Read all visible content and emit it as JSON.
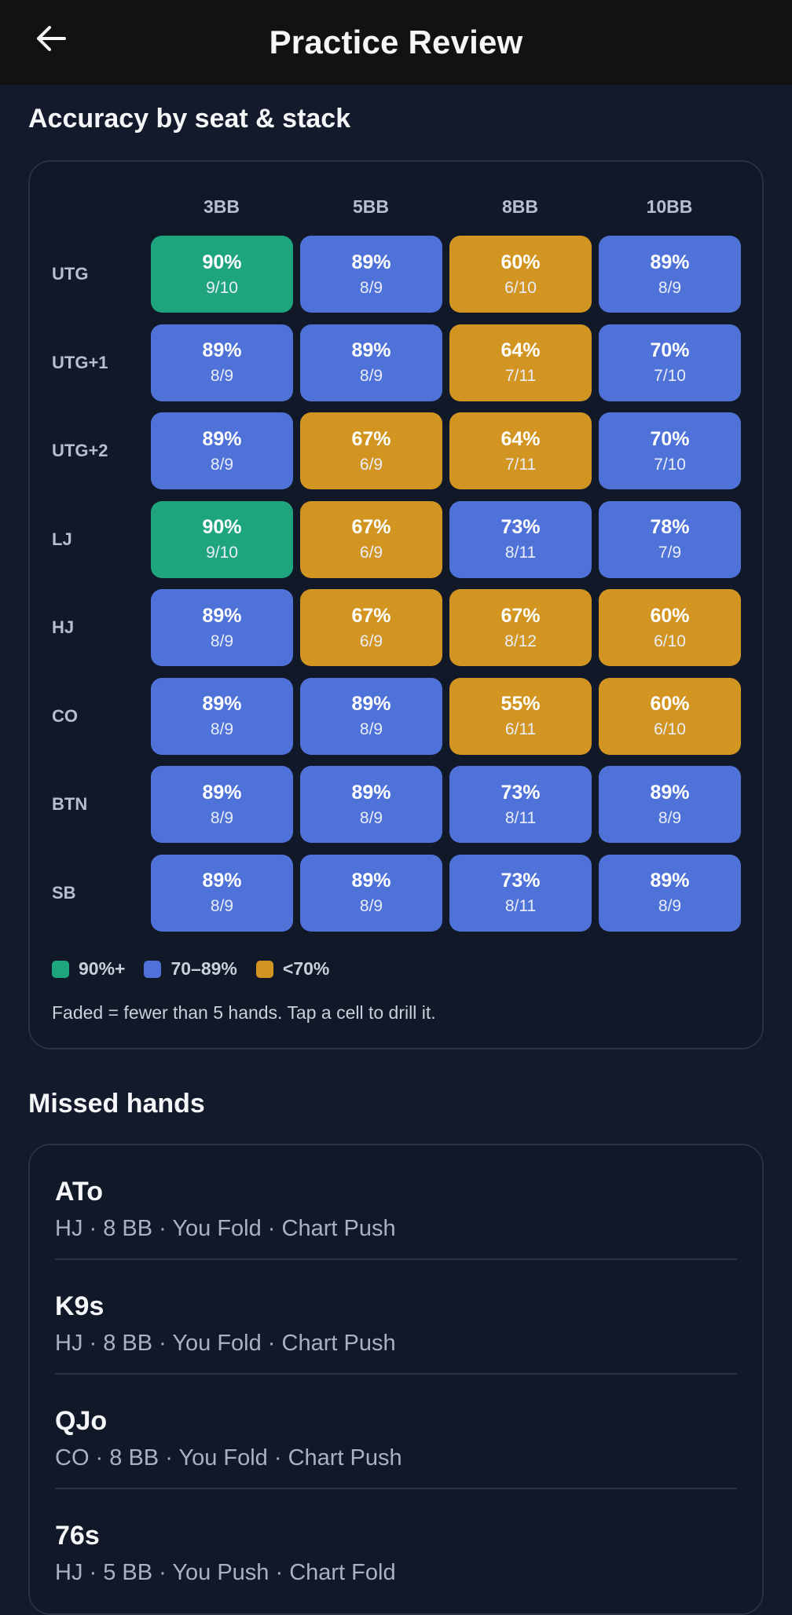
{
  "appbar": {
    "title": "Practice Review",
    "back_icon": "arrow-left-icon"
  },
  "grid_section": {
    "title": "Accuracy by seat & stack",
    "columns": [
      "3BB",
      "5BB",
      "8BB",
      "10BB"
    ],
    "rows": [
      {
        "seat": "UTG",
        "cells": [
          {
            "pct": "90%",
            "frac": "9/10",
            "tier": "high"
          },
          {
            "pct": "89%",
            "frac": "8/9",
            "tier": "mid"
          },
          {
            "pct": "60%",
            "frac": "6/10",
            "tier": "low"
          },
          {
            "pct": "89%",
            "frac": "8/9",
            "tier": "mid"
          }
        ]
      },
      {
        "seat": "UTG+1",
        "cells": [
          {
            "pct": "89%",
            "frac": "8/9",
            "tier": "mid"
          },
          {
            "pct": "89%",
            "frac": "8/9",
            "tier": "mid"
          },
          {
            "pct": "64%",
            "frac": "7/11",
            "tier": "low"
          },
          {
            "pct": "70%",
            "frac": "7/10",
            "tier": "mid"
          }
        ]
      },
      {
        "seat": "UTG+2",
        "cells": [
          {
            "pct": "89%",
            "frac": "8/9",
            "tier": "mid"
          },
          {
            "pct": "67%",
            "frac": "6/9",
            "tier": "low"
          },
          {
            "pct": "64%",
            "frac": "7/11",
            "tier": "low"
          },
          {
            "pct": "70%",
            "frac": "7/10",
            "tier": "mid"
          }
        ]
      },
      {
        "seat": "LJ",
        "cells": [
          {
            "pct": "90%",
            "frac": "9/10",
            "tier": "high"
          },
          {
            "pct": "67%",
            "frac": "6/9",
            "tier": "low"
          },
          {
            "pct": "73%",
            "frac": "8/11",
            "tier": "mid"
          },
          {
            "pct": "78%",
            "frac": "7/9",
            "tier": "mid"
          }
        ]
      },
      {
        "seat": "HJ",
        "cells": [
          {
            "pct": "89%",
            "frac": "8/9",
            "tier": "mid"
          },
          {
            "pct": "67%",
            "frac": "6/9",
            "tier": "low"
          },
          {
            "pct": "67%",
            "frac": "8/12",
            "tier": "low"
          },
          {
            "pct": "60%",
            "frac": "6/10",
            "tier": "low"
          }
        ]
      },
      {
        "seat": "CO",
        "cells": [
          {
            "pct": "89%",
            "frac": "8/9",
            "tier": "mid"
          },
          {
            "pct": "89%",
            "frac": "8/9",
            "tier": "mid"
          },
          {
            "pct": "55%",
            "frac": "6/11",
            "tier": "low"
          },
          {
            "pct": "60%",
            "frac": "6/10",
            "tier": "low"
          }
        ]
      },
      {
        "seat": "BTN",
        "cells": [
          {
            "pct": "89%",
            "frac": "8/9",
            "tier": "mid"
          },
          {
            "pct": "89%",
            "frac": "8/9",
            "tier": "mid"
          },
          {
            "pct": "73%",
            "frac": "8/11",
            "tier": "mid"
          },
          {
            "pct": "89%",
            "frac": "8/9",
            "tier": "mid"
          }
        ]
      },
      {
        "seat": "SB",
        "cells": [
          {
            "pct": "89%",
            "frac": "8/9",
            "tier": "mid"
          },
          {
            "pct": "89%",
            "frac": "8/9",
            "tier": "mid"
          },
          {
            "pct": "73%",
            "frac": "8/11",
            "tier": "mid"
          },
          {
            "pct": "89%",
            "frac": "8/9",
            "tier": "mid"
          }
        ]
      }
    ],
    "legend": [
      {
        "label": "90%+",
        "color": "#1fa57e"
      },
      {
        "label": "70–89%",
        "color": "#4f72d8"
      },
      {
        "label": "<70%",
        "color": "#d39522"
      }
    ],
    "tier_colors": {
      "high": "#1fa57e",
      "mid": "#4f72d8",
      "low": "#d39522"
    },
    "note": "Faded = fewer than 5 hands. Tap a cell to drill it."
  },
  "missed_section": {
    "title": "Missed hands",
    "hands": [
      {
        "hand": "ATo",
        "meta": "HJ · 8 BB · You Fold · Chart Push"
      },
      {
        "hand": "K9s",
        "meta": "HJ · 8 BB · You Fold · Chart Push"
      },
      {
        "hand": "QJo",
        "meta": "CO · 8 BB · You Fold · Chart Push"
      },
      {
        "hand": "76s",
        "meta": "HJ · 5 BB · You Push · Chart Fold"
      }
    ]
  }
}
